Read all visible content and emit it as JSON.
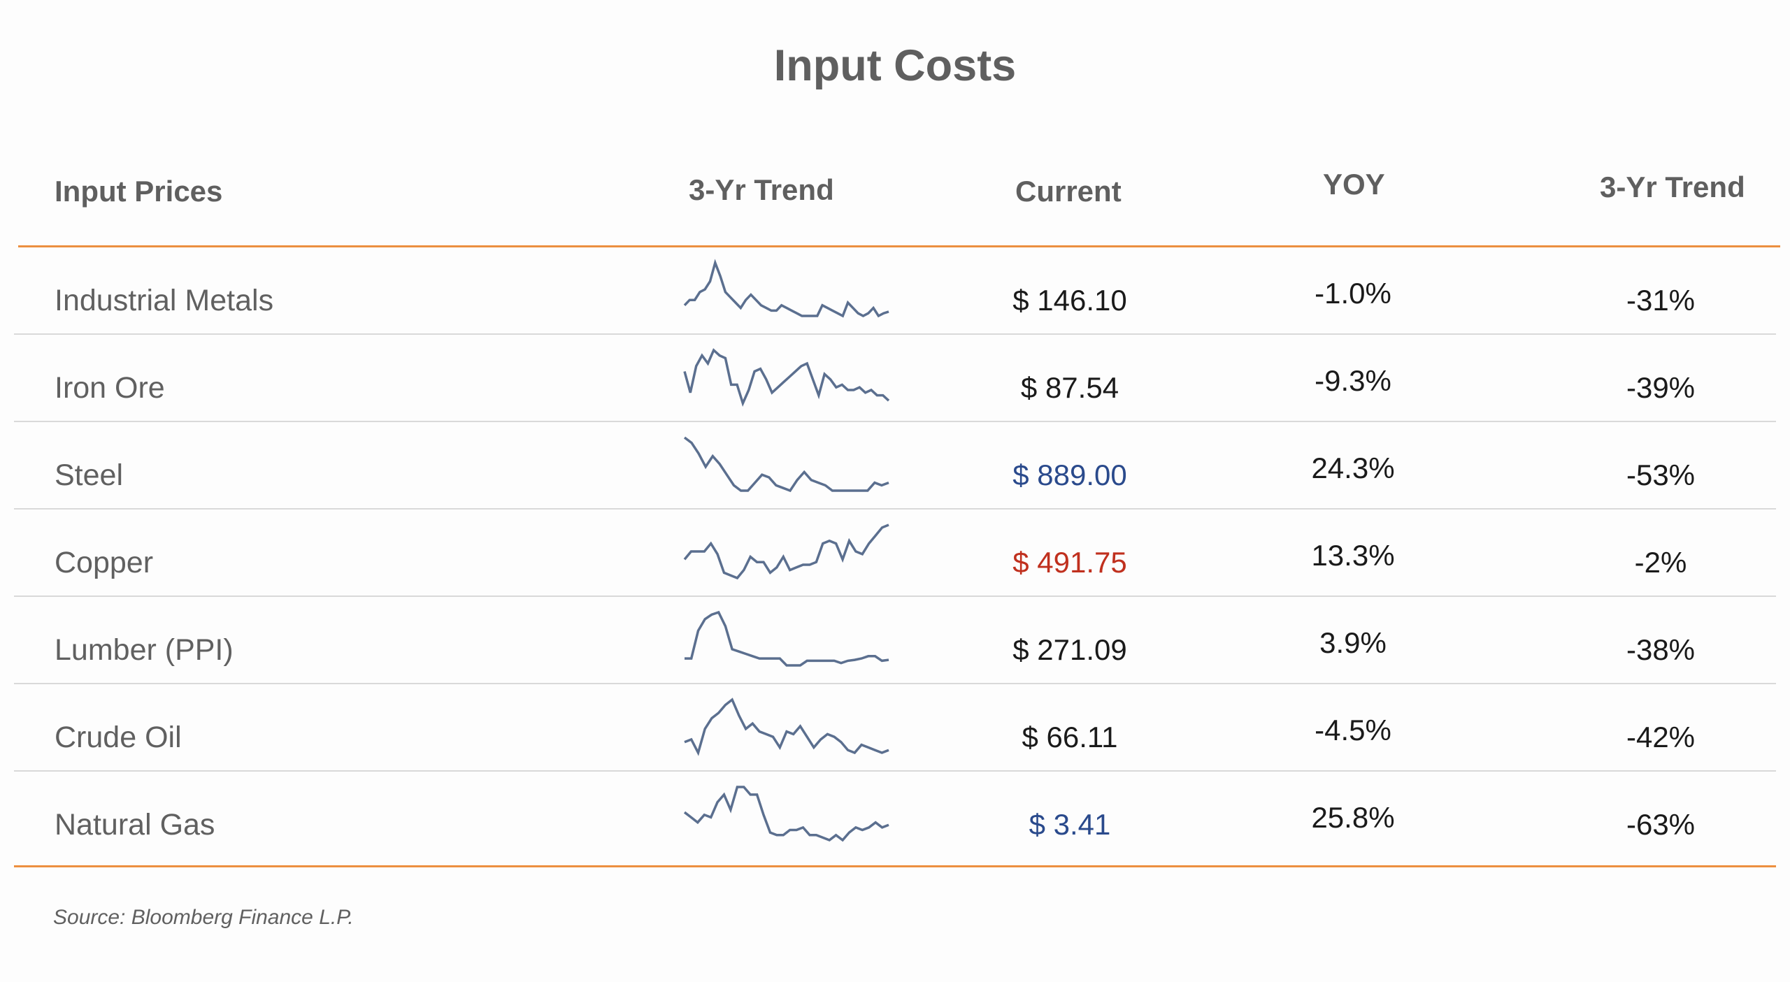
{
  "title": "Input Costs",
  "headers": {
    "input_prices": "Input Prices",
    "trend_chart": "3-Yr Trend",
    "current": "Current",
    "yoy": "YOY",
    "trend_pct": "3-Yr Trend"
  },
  "colors": {
    "accent_rule": "#ec8f3f",
    "sparkline": "#5b6f8f",
    "current_blue": "#2a4a8c",
    "current_red": "#c0301e",
    "current_default": "#1a1a1a"
  },
  "source": "Source: Bloomberg Finance L.P.",
  "chart_data": {
    "type": "table",
    "columns": [
      "Input Prices",
      "3-Yr Trend",
      "Current",
      "YOY",
      "3-Yr Trend"
    ],
    "rows": [
      {
        "name": "Industrial Metals",
        "current": "$ 146.10",
        "current_color": "default",
        "yoy": "-1.0%",
        "trend_3yr": "-31%",
        "spark": [
          0.2,
          0.3,
          0.3,
          0.45,
          0.5,
          0.65,
          1.0,
          0.75,
          0.45,
          0.35,
          0.25,
          0.15,
          0.3,
          0.4,
          0.3,
          0.2,
          0.15,
          0.1,
          0.1,
          0.2,
          0.15,
          0.1,
          0.05,
          0.0,
          0.0,
          0.0,
          0.0,
          0.2,
          0.15,
          0.1,
          0.05,
          0.0,
          0.25,
          0.15,
          0.05,
          0.0,
          0.05,
          0.15,
          0.0,
          0.05,
          0.08
        ]
      },
      {
        "name": "Iron Ore",
        "current": "$ 87.54",
        "current_color": "default",
        "yoy": "-9.3%",
        "trend_3yr": "-39%",
        "spark": [
          0.6,
          0.2,
          0.7,
          0.9,
          0.75,
          1.0,
          0.9,
          0.85,
          0.35,
          0.35,
          0.0,
          0.25,
          0.6,
          0.65,
          0.45,
          0.2,
          0.3,
          0.4,
          0.5,
          0.6,
          0.7,
          0.75,
          0.45,
          0.15,
          0.55,
          0.45,
          0.3,
          0.35,
          0.25,
          0.25,
          0.3,
          0.2,
          0.25,
          0.15,
          0.15,
          0.05
        ]
      },
      {
        "name": "Steel",
        "current": "$ 889.00",
        "current_color": "blue",
        "yoy": "24.3%",
        "trend_3yr": "-53%",
        "spark": [
          1.0,
          0.9,
          0.7,
          0.45,
          0.65,
          0.5,
          0.3,
          0.1,
          0.0,
          0.0,
          0.15,
          0.3,
          0.25,
          0.1,
          0.05,
          0.0,
          0.2,
          0.35,
          0.2,
          0.15,
          0.1,
          0.0,
          0.0,
          0.0,
          0.0,
          0.0,
          0.0,
          0.15,
          0.1,
          0.15
        ]
      },
      {
        "name": "Copper",
        "current": "$ 491.75",
        "current_color": "red",
        "yoy": "13.3%",
        "trend_3yr": "-2%",
        "spark": [
          0.35,
          0.5,
          0.5,
          0.5,
          0.65,
          0.45,
          0.1,
          0.05,
          0.0,
          0.15,
          0.4,
          0.3,
          0.3,
          0.1,
          0.2,
          0.4,
          0.15,
          0.2,
          0.25,
          0.25,
          0.3,
          0.65,
          0.7,
          0.65,
          0.35,
          0.7,
          0.5,
          0.45,
          0.65,
          0.8,
          0.95,
          1.0
        ]
      },
      {
        "name": "Lumber (PPI)",
        "current": "$ 271.09",
        "current_color": "default",
        "yoy": "3.9%",
        "trend_3yr": "-38%",
        "spark": [
          0.0,
          0.0,
          0.6,
          0.85,
          0.95,
          1.0,
          0.7,
          0.2,
          0.15,
          0.1,
          0.05,
          0.0,
          0.0,
          0.0,
          0.0,
          -0.15,
          -0.15,
          -0.15,
          -0.05,
          -0.05,
          -0.05,
          -0.05,
          -0.05,
          -0.1,
          -0.05,
          -0.03,
          0.0,
          0.05,
          0.05,
          -0.05,
          -0.03
        ]
      },
      {
        "name": "Crude Oil",
        "current": "$ 66.11",
        "current_color": "default",
        "yoy": "-4.5%",
        "trend_3yr": "-42%",
        "spark": [
          0.2,
          0.25,
          0.0,
          0.45,
          0.65,
          0.75,
          0.9,
          1.0,
          0.7,
          0.45,
          0.55,
          0.4,
          0.35,
          0.3,
          0.1,
          0.4,
          0.35,
          0.5,
          0.3,
          0.1,
          0.25,
          0.35,
          0.3,
          0.2,
          0.05,
          0.0,
          0.15,
          0.1,
          0.05,
          0.0,
          0.05
        ]
      },
      {
        "name": "Natural Gas",
        "current": "$ 3.41",
        "current_color": "blue",
        "yoy": "25.8%",
        "trend_3yr": "-63%",
        "spark": [
          0.5,
          0.4,
          0.3,
          0.45,
          0.4,
          0.7,
          0.85,
          0.55,
          1.0,
          1.0,
          0.85,
          0.85,
          0.45,
          0.1,
          0.05,
          0.05,
          0.15,
          0.15,
          0.2,
          0.05,
          0.05,
          0.0,
          -0.05,
          0.05,
          -0.05,
          0.1,
          0.2,
          0.15,
          0.2,
          0.3,
          0.2,
          0.25
        ]
      }
    ]
  }
}
